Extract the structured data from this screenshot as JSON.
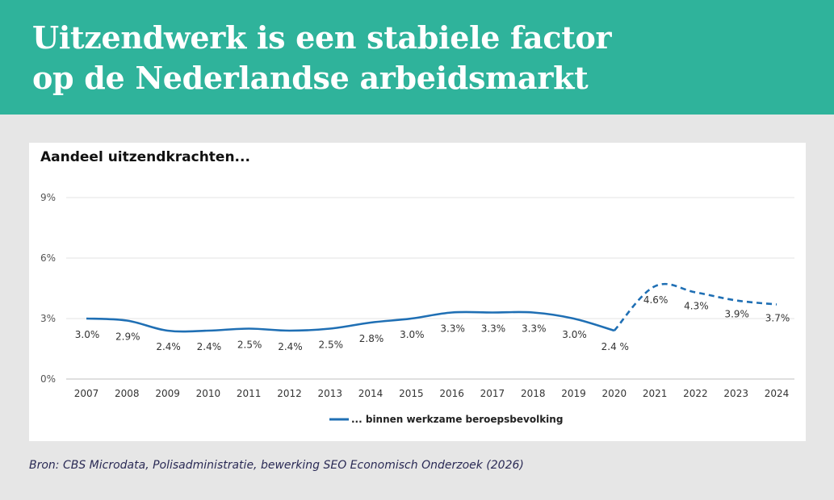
{
  "header": {
    "title_line1": "Uitzendwerk is een stabiele factor",
    "title_line2": "op de Nederlandse arbeidsmarkt",
    "background_color": "#2fb39b"
  },
  "chart_card": {
    "title": "Aandeel uitzendkrachten..."
  },
  "chart_data": {
    "type": "line",
    "title": "Aandeel uitzendkrachten...",
    "xlabel": "",
    "ylabel": "",
    "categories": [
      "2007",
      "2008",
      "2009",
      "2010",
      "2011",
      "2012",
      "2013",
      "2014",
      "2015",
      "2016",
      "2017",
      "2018",
      "2019",
      "2020",
      "2021",
      "2022",
      "2023",
      "2024"
    ],
    "y_ticks": [
      "0%",
      "3%",
      "6%",
      "9%"
    ],
    "ylim": [
      0,
      9
    ],
    "grid": true,
    "legend_position": "bottom",
    "series": [
      {
        "name": "... binnen werkzame beroepsbevolking",
        "color": "#1f6fb4",
        "values": [
          3.0,
          2.9,
          2.4,
          2.4,
          2.5,
          2.4,
          2.5,
          2.8,
          3.0,
          3.3,
          3.3,
          3.3,
          3.0,
          2.4,
          4.6,
          4.3,
          3.9,
          3.7
        ],
        "data_labels": [
          "3.0%",
          "2.9%",
          "2.4%",
          "2.4%",
          "2.5%",
          "2.4%",
          "2.5%",
          "2.8%",
          "3.0%",
          "3.3%",
          "3.3%",
          "3.3%",
          "3.0%",
          "2.4 %",
          "4.6%",
          "4.3%",
          "3.9%",
          "3.7%"
        ],
        "solid_until": "2020",
        "dashed_from": "2020"
      }
    ]
  },
  "source": {
    "text": "Bron: CBS Microdata, Polisadministratie, bewerking SEO Economisch Onderzoek (2026)"
  }
}
